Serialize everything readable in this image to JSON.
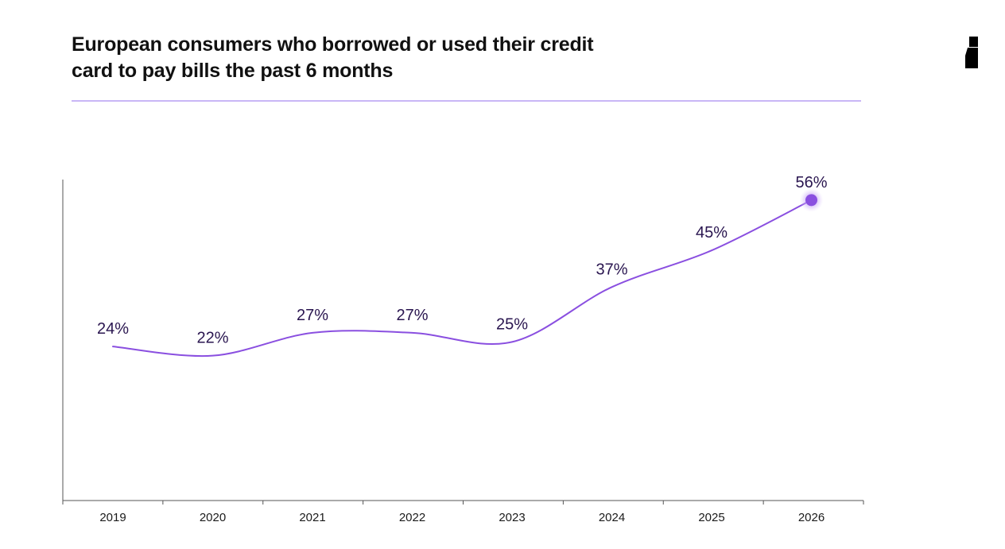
{
  "title_lines": [
    "European consumers who borrowed or used their credit",
    "card to pay bills the past 6 months"
  ],
  "colors": {
    "line": "#8a4fe0",
    "marker": "#8a4fe0",
    "marker_glow": "#b68cf5",
    "title_rule": "#c9b6f6",
    "axis": "#555555",
    "label": "#2a1650",
    "brand_logo": "#000000"
  },
  "brand_logo": {
    "icon": "brand-mark-icon"
  },
  "chart_data": {
    "type": "line",
    "title": "European consumers who borrowed or used their credit card to pay bills the past 6 months",
    "categories": [
      "2019",
      "2020",
      "2021",
      "2022",
      "2023",
      "2024",
      "2025",
      "2026"
    ],
    "series": [
      {
        "values": [
          24,
          22,
          27,
          27,
          25,
          37,
          45,
          56
        ],
        "labels": [
          "24%",
          "22%",
          "27%",
          "27%",
          "25%",
          "37%",
          "45%",
          "56%"
        ]
      }
    ],
    "highlight_point": "2026",
    "xlabel": "",
    "ylabel": "",
    "ylim": [
      0,
      60
    ],
    "grid": false,
    "legend": "none",
    "smooth": true
  }
}
